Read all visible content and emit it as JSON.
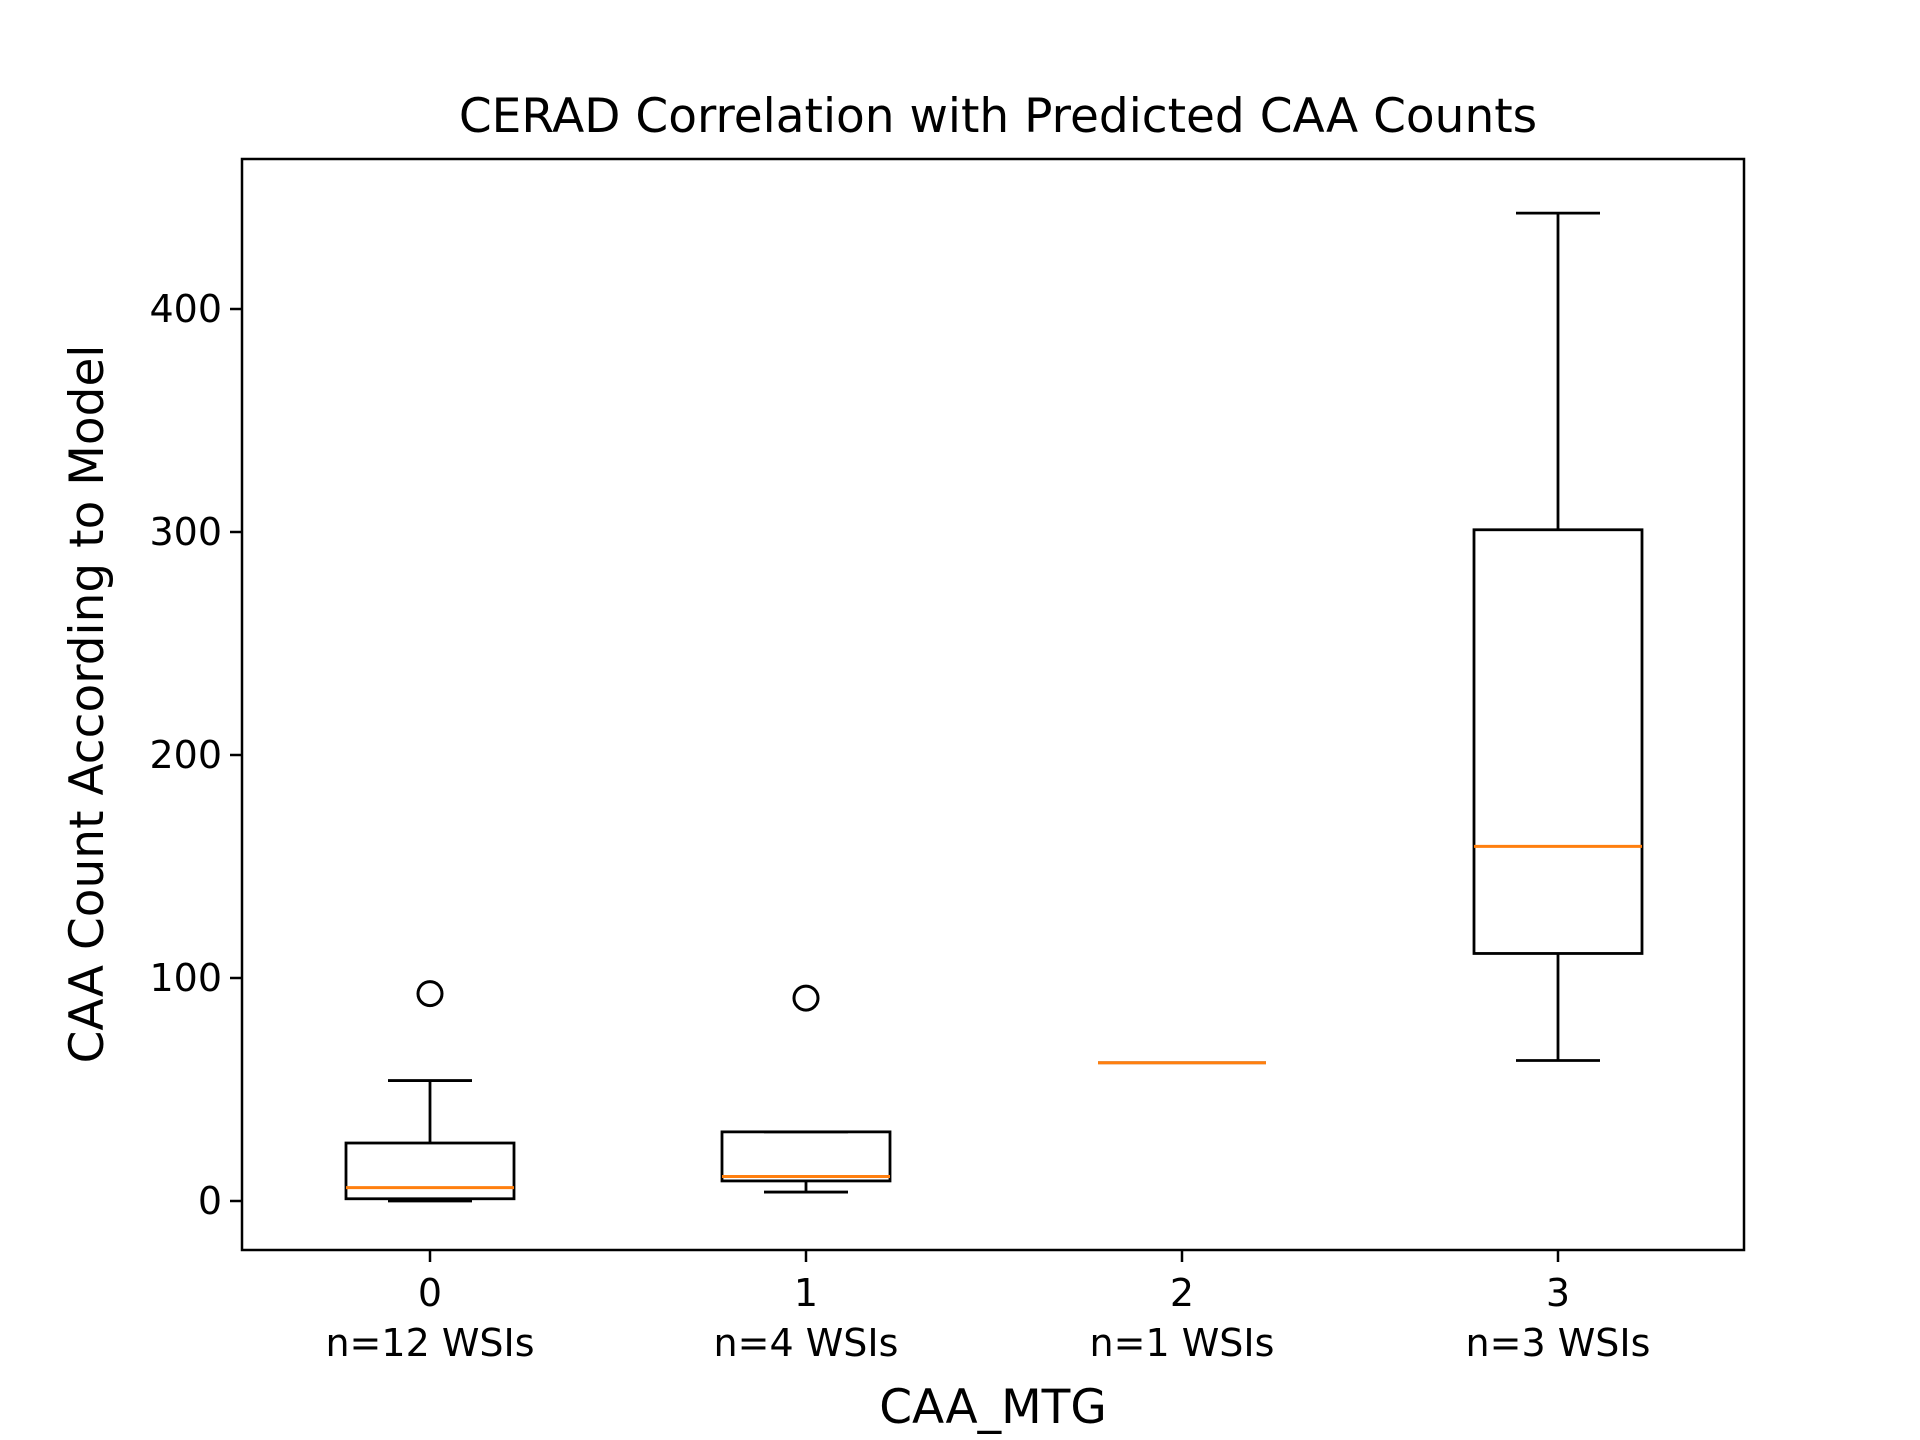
{
  "chart_data": {
    "type": "box",
    "title": "CERAD Correlation with Predicted CAA Counts",
    "xlabel": "CAA_MTG",
    "ylabel": "CAA Count According to Model",
    "ylim": [
      -22,
      465
    ],
    "yticks": [
      0,
      100,
      200,
      300,
      400
    ],
    "grid": false,
    "median_color": "#ff7f0e",
    "box_color": "#000000",
    "categories": [
      {
        "label": "0",
        "sublabel": "n=12 WSIs",
        "whisker_low": 0,
        "q1": 1,
        "median": 6,
        "q3": 26,
        "whisker_high": 54,
        "outliers": [
          93
        ]
      },
      {
        "label": "1",
        "sublabel": "n=4 WSIs",
        "whisker_low": 4,
        "q1": 9,
        "median": 11,
        "q3": 31,
        "whisker_high": 31,
        "outliers": [
          91
        ]
      },
      {
        "label": "2",
        "sublabel": "n=1 WSIs",
        "whisker_low": 62,
        "q1": 62,
        "median": 62,
        "q3": 62,
        "whisker_high": 62,
        "outliers": []
      },
      {
        "label": "3",
        "sublabel": "n=3 WSIs",
        "whisker_low": 63,
        "q1": 111,
        "median": 159,
        "q3": 301,
        "whisker_high": 443,
        "outliers": []
      }
    ]
  }
}
